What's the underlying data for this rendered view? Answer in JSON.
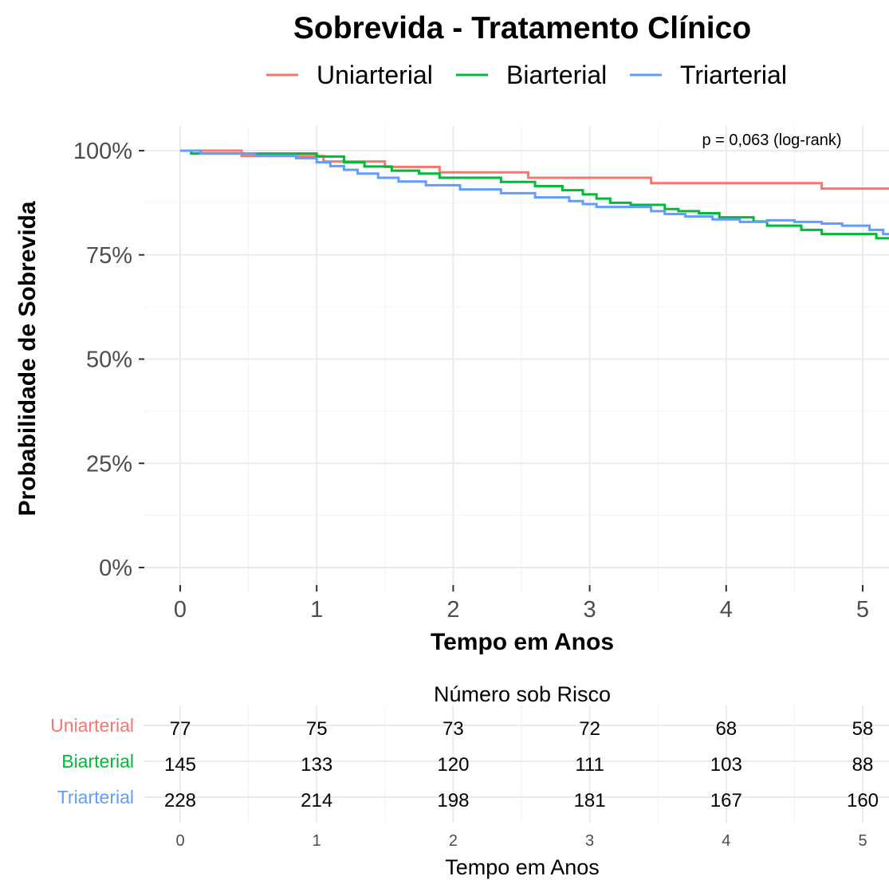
{
  "chart_data": {
    "type": "line",
    "title": "Sobrevida - Tratamento Clínico",
    "xlabel": "Tempo em Anos",
    "ylabel": "Probabilidade de Sobrevida",
    "xlim": [
      0,
      5
    ],
    "ylim": [
      0,
      1
    ],
    "x_ticks": [
      "0",
      "1",
      "2",
      "3",
      "4",
      "5"
    ],
    "y_ticks": [
      "0%",
      "25%",
      "50%",
      "75%",
      "100%"
    ],
    "grid": true,
    "legend_position": "top",
    "annotation": "p = 0,063 (log-rank)",
    "series": [
      {
        "name": "Uniarterial",
        "color": "#F8766D",
        "x": [
          0,
          0.45,
          1.0,
          1.05,
          1.5,
          1.9,
          2.55,
          3.45,
          4.7,
          5.2
        ],
        "y": [
          1.0,
          0.987,
          0.987,
          0.974,
          0.961,
          0.948,
          0.935,
          0.922,
          0.909,
          0.909
        ]
      },
      {
        "name": "Biarterial",
        "color": "#00BA38",
        "x": [
          0,
          0.08,
          1.0,
          1.2,
          1.35,
          1.55,
          1.75,
          1.9,
          2.35,
          2.6,
          2.8,
          2.95,
          3.05,
          3.15,
          3.3,
          3.55,
          3.65,
          3.8,
          3.95,
          4.2,
          4.3,
          4.55,
          4.7,
          5.1,
          5.2
        ],
        "y": [
          1.0,
          0.993,
          0.986,
          0.972,
          0.962,
          0.952,
          0.945,
          0.935,
          0.925,
          0.915,
          0.905,
          0.895,
          0.885,
          0.875,
          0.87,
          0.86,
          0.855,
          0.85,
          0.84,
          0.83,
          0.82,
          0.81,
          0.8,
          0.79,
          0.79
        ]
      },
      {
        "name": "Triarterial",
        "color": "#619CFF",
        "x": [
          0,
          0.15,
          0.55,
          0.85,
          1.0,
          1.1,
          1.2,
          1.3,
          1.45,
          1.6,
          1.8,
          2.05,
          2.35,
          2.6,
          2.85,
          2.95,
          3.05,
          3.45,
          3.55,
          3.7,
          3.9,
          4.1,
          4.3,
          4.5,
          4.7,
          4.85,
          5.05,
          5.15,
          5.2
        ],
        "y": [
          1.0,
          0.993,
          0.988,
          0.982,
          0.972,
          0.963,
          0.954,
          0.945,
          0.935,
          0.926,
          0.917,
          0.907,
          0.898,
          0.888,
          0.879,
          0.872,
          0.865,
          0.855,
          0.848,
          0.842,
          0.835,
          0.829,
          0.833,
          0.829,
          0.825,
          0.82,
          0.81,
          0.8,
          0.8
        ]
      }
    ],
    "risk_table": {
      "title": "Número sob Risco",
      "xlabel": "Tempo em Anos",
      "times": [
        "0",
        "1",
        "2",
        "3",
        "4",
        "5"
      ],
      "rows": [
        {
          "name": "Uniarterial",
          "color": "#F8766D",
          "values": [
            "77",
            "75",
            "73",
            "72",
            "68",
            "58"
          ]
        },
        {
          "name": "Biarterial",
          "color": "#00BA38",
          "values": [
            "145",
            "133",
            "120",
            "111",
            "103",
            "88"
          ]
        },
        {
          "name": "Triarterial",
          "color": "#619CFF",
          "values": [
            "228",
            "214",
            "198",
            "181",
            "167",
            "160"
          ]
        }
      ]
    }
  }
}
